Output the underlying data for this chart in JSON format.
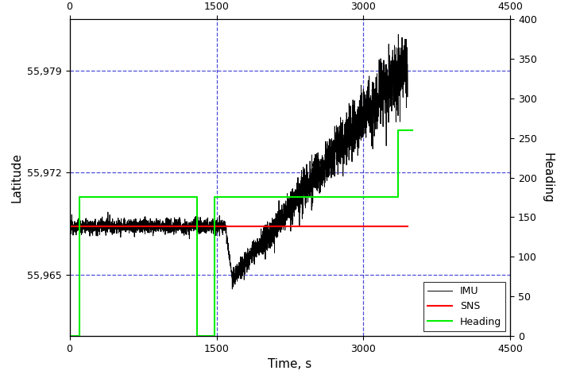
{
  "title": "",
  "xlabel": "Time, s",
  "ylabel_left": "Latitude",
  "ylabel_right": "Heading",
  "xlim": [
    0,
    4500
  ],
  "ylim_left": [
    55.9608,
    55.9825
  ],
  "ylim_right": [
    0,
    400
  ],
  "yticks_left": [
    55.965,
    55.972,
    55.979
  ],
  "yticks_right": [
    0,
    50,
    100,
    150,
    200,
    250,
    300,
    350,
    400
  ],
  "xticks": [
    0,
    1500,
    3000,
    4500
  ],
  "grid_color": "#0000CC",
  "grid_alpha": 0.7,
  "sns_color": "#FF0000",
  "imu_color": "#000000",
  "heading_color": "#00EE00",
  "background_color": "#FFFFFF",
  "heading_ylabel_color": "#000000",
  "axis_label_fontsize": 11,
  "tick_fontsize": 9,
  "sns_lat": 55.9683,
  "imu_start": 55.9683,
  "imu_drop_end": 55.9647,
  "imu_rise_end": 55.9795,
  "heading_times": [
    0,
    100,
    100,
    1300,
    1300,
    1480,
    1480,
    3050,
    3350,
    3350,
    3500
  ],
  "heading_values": [
    0,
    0,
    175,
    175,
    0,
    0,
    175,
    175,
    175,
    260,
    260
  ]
}
